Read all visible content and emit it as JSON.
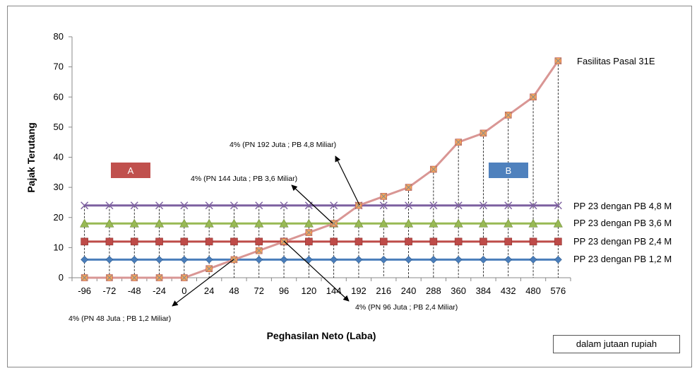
{
  "chart_data": {
    "type": "line",
    "xlabel": "Peghasilan Neto (Laba)",
    "ylabel": "Pajak Terutang",
    "ylim": [
      0,
      80
    ],
    "yticks": [
      0,
      10,
      20,
      30,
      40,
      50,
      60,
      70,
      80
    ],
    "categories": [
      "-96",
      "-72",
      "-48",
      "-24",
      "0",
      "24",
      "48",
      "72",
      "96",
      "120",
      "144",
      "192",
      "216",
      "240",
      "288",
      "360",
      "384",
      "432",
      "480",
      "576"
    ],
    "grid": false,
    "series": [
      {
        "name": "PP 23 dengan PB 1,2 M",
        "color": "#4a7ebb",
        "marker": "diamond",
        "values": [
          6,
          6,
          6,
          6,
          6,
          6,
          6,
          6,
          6,
          6,
          6,
          6,
          6,
          6,
          6,
          6,
          6,
          6,
          6,
          6
        ]
      },
      {
        "name": "PP 23 dengan PB 2,4 M",
        "color": "#be4b48",
        "marker": "square",
        "values": [
          12,
          12,
          12,
          12,
          12,
          12,
          12,
          12,
          12,
          12,
          12,
          12,
          12,
          12,
          12,
          12,
          12,
          12,
          12,
          12
        ]
      },
      {
        "name": "PP 23 dengan PB 3,6 M",
        "color": "#98b954",
        "marker": "triangle",
        "values": [
          18,
          18,
          18,
          18,
          18,
          18,
          18,
          18,
          18,
          18,
          18,
          18,
          18,
          18,
          18,
          18,
          18,
          18,
          18,
          18
        ]
      },
      {
        "name": "PP 23 dengan PB 4,8 M",
        "color": "#7d60a0",
        "marker": "x",
        "values": [
          24,
          24,
          24,
          24,
          24,
          24,
          24,
          24,
          24,
          24,
          24,
          24,
          24,
          24,
          24,
          24,
          24,
          24,
          24,
          24
        ]
      },
      {
        "name": "Fasilitas  Pasal 31E",
        "color": "#d99694",
        "marker": "star",
        "values": [
          0,
          0,
          0,
          0,
          0,
          3,
          6,
          9,
          12,
          15,
          18,
          24,
          27,
          30,
          36,
          45,
          48,
          54,
          60,
          72
        ]
      }
    ],
    "region_labels": [
      {
        "text": "A",
        "color": "#c0504d"
      },
      {
        "text": "B",
        "color": "#4f81bd"
      }
    ],
    "annotations": [
      "4% (PN 192 Juta ; PB 4,8 Miliar)",
      "4% (PN 144 Juta ; PB 3,6 Miliar)",
      "4% (PN 48 Juta ; PB 1,2 Miliar)",
      "4% (PN 96 Juta ; PB 2,4 Miliar)"
    ],
    "unit_note": "dalam jutaan rupiah"
  }
}
